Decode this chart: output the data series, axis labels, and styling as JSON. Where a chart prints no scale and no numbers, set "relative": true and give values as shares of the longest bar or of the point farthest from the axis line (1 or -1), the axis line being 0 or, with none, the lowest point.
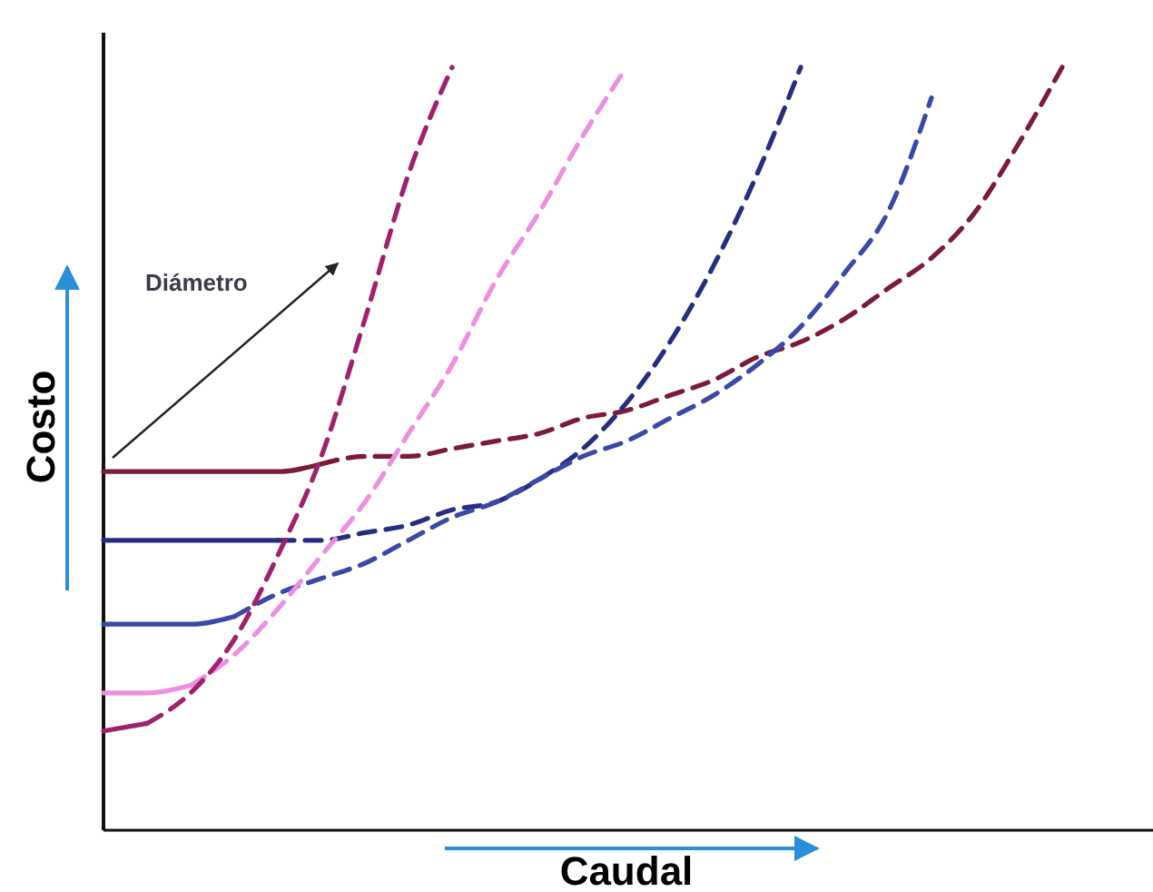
{
  "chart_data": {
    "type": "line",
    "relative": true,
    "xlabel": "Caudal",
    "ylabel": "Costo",
    "annotations": [
      "Diámetro"
    ],
    "categories": [
      null,
      null,
      null,
      null,
      null,
      null,
      null,
      null,
      null,
      null,
      null,
      null,
      null,
      null,
      null,
      null,
      null,
      null,
      null,
      null,
      null,
      null,
      null,
      null,
      null
    ],
    "series": [
      {
        "color": "#7b1a3a",
        "line_style": "solid",
        "values": [
          0.47,
          0.47,
          0.47,
          0.47,
          0.47,
          0.48,
          null,
          null,
          null,
          null,
          null,
          null,
          null,
          null,
          null,
          null,
          null,
          null,
          null,
          null,
          null,
          null,
          null,
          null,
          null
        ]
      },
      {
        "color": "#7b1a3a",
        "line_style": "dashed",
        "values": [
          null,
          null,
          null,
          null,
          null,
          0.48,
          0.49,
          0.49,
          0.5,
          0.51,
          0.52,
          0.54,
          0.55,
          0.57,
          0.59,
          0.62,
          0.64,
          0.67,
          0.71,
          0.75,
          0.81,
          0.9,
          1.0,
          null,
          null
        ]
      },
      {
        "color": "#262d80",
        "line_style": "solid",
        "values": [
          0.38,
          0.38,
          0.38,
          0.38,
          0.38,
          null,
          null,
          null,
          null,
          null,
          null,
          null,
          null,
          null,
          null,
          null,
          null,
          null,
          null,
          null,
          null,
          null,
          null,
          null,
          null
        ]
      },
      {
        "color": "#262d80",
        "line_style": "dashed",
        "values": [
          null,
          null,
          null,
          null,
          0.38,
          0.38,
          0.39,
          0.4,
          0.42,
          0.43,
          0.46,
          0.5,
          0.56,
          0.64,
          0.74,
          0.86,
          1.0,
          null,
          null,
          null,
          null,
          null,
          null,
          null,
          null
        ]
      },
      {
        "color": "#3a48a8",
        "line_style": "solid",
        "values": [
          0.27,
          0.27,
          0.27,
          0.28,
          null,
          null,
          null,
          null,
          null,
          null,
          null,
          null,
          null,
          null,
          null,
          null,
          null,
          null,
          null,
          null,
          null,
          null,
          null,
          null,
          null
        ]
      },
      {
        "color": "#3a48a8",
        "line_style": "dashed",
        "values": [
          null,
          null,
          null,
          0.28,
          0.31,
          0.33,
          0.35,
          0.38,
          0.41,
          0.43,
          0.46,
          0.49,
          0.51,
          0.54,
          0.57,
          0.61,
          0.66,
          0.73,
          0.81,
          0.96,
          null,
          null,
          null,
          null,
          null
        ]
      },
      {
        "color": "#ee8ee0",
        "line_style": "solid",
        "values": [
          0.18,
          0.18,
          0.19,
          null,
          null,
          null,
          null,
          null,
          null,
          null,
          null,
          null,
          null,
          null,
          null,
          null,
          null,
          null,
          null,
          null,
          null,
          null,
          null,
          null,
          null
        ]
      },
      {
        "color": "#ee8ee0",
        "line_style": "dashed",
        "values": [
          null,
          null,
          0.19,
          0.23,
          0.29,
          0.36,
          0.43,
          0.52,
          0.61,
          0.72,
          0.81,
          0.91,
          1.0,
          null,
          null,
          null,
          null,
          null,
          null,
          null,
          null,
          null,
          null,
          null,
          null
        ]
      },
      {
        "color": "#a0206e",
        "line_style": "solid",
        "values": [
          0.13,
          0.14,
          null,
          null,
          null,
          null,
          null,
          null,
          null,
          null,
          null,
          null,
          null,
          null,
          null,
          null,
          null,
          null,
          null,
          null,
          null,
          null,
          null,
          null,
          null
        ]
      },
      {
        "color": "#a0206e",
        "line_style": "dashed",
        "values": [
          null,
          0.14,
          0.18,
          0.25,
          0.36,
          0.49,
          0.67,
          0.86,
          1.0,
          null,
          null,
          null,
          null,
          null,
          null,
          null,
          null,
          null,
          null,
          null,
          null,
          null,
          null,
          null,
          null
        ]
      }
    ]
  }
}
